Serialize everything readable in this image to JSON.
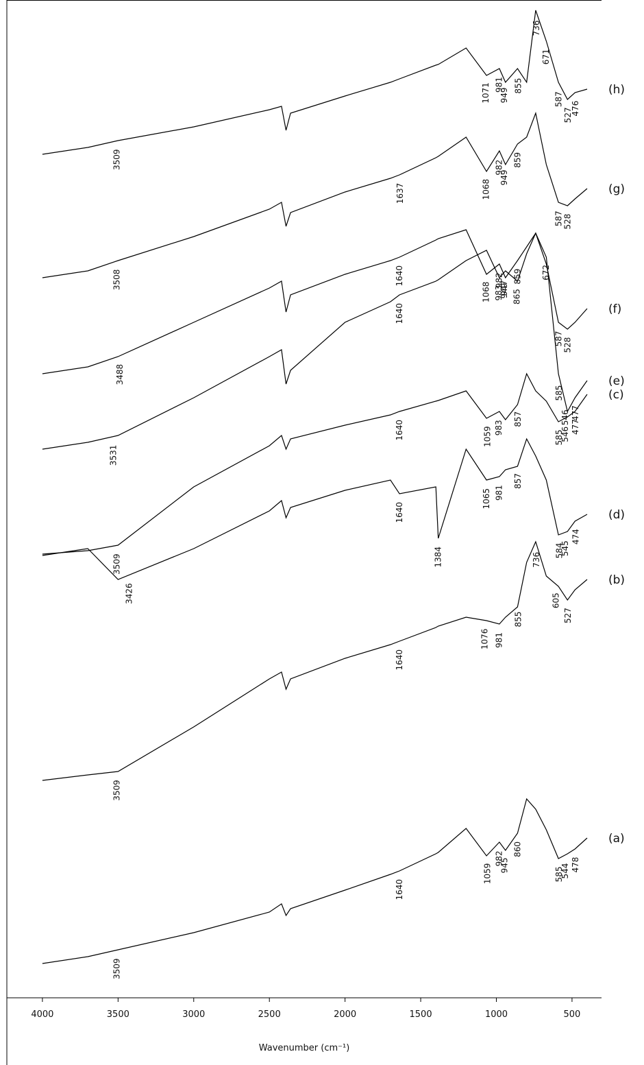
{
  "chart_data": {
    "type": "line",
    "x_label": "Wavenumber (cm⁻¹)",
    "xlim": [
      4235,
      305
    ],
    "ylim": [
      0,
      1455
    ],
    "xticks": [
      4000,
      3500,
      3000,
      2500,
      2000,
      1500,
      1000,
      500
    ],
    "grid": false,
    "x": [
      4000,
      3700,
      3500,
      3000,
      2500,
      2420,
      2390,
      2360,
      2000,
      1700,
      1640,
      1400,
      1384,
      1200,
      1065,
      980,
      940,
      860,
      800,
      740,
      670,
      590,
      530,
      480,
      400
    ],
    "series": [
      {
        "name": "(a)",
        "color": "#000000",
        "values": [
          50,
          60,
          70,
          95,
          125,
          137,
          120,
          130,
          157,
          180,
          185,
          210,
          212,
          247,
          207,
          227,
          215,
          240,
          290,
          275,
          245,
          203,
          210,
          217,
          233
        ],
        "peaks": [
          3509,
          1640,
          1059,
          982,
          945,
          860,
          585,
          544,
          478
        ]
      },
      {
        "name": "(b)",
        "color": "#000000",
        "values": [
          317,
          325,
          330,
          395,
          465,
          475,
          450,
          465,
          495,
          515,
          520,
          540,
          542,
          555,
          550,
          545,
          555,
          570,
          635,
          665,
          615,
          600,
          580,
          595,
          610
        ],
        "peaks": [
          3509,
          1640,
          1076,
          981,
          855,
          736,
          605,
          527
        ]
      },
      {
        "name": "(c)",
        "color": "#000000",
        "values": [
          647,
          652,
          660,
          745,
          805,
          820,
          800,
          815,
          835,
          850,
          855,
          870,
          871,
          885,
          845,
          855,
          843,
          865,
          910,
          885,
          870,
          840,
          847,
          855,
          880
        ],
        "peaks": [
          3509,
          1640,
          1059,
          983,
          857,
          585,
          546,
          477
        ]
      },
      {
        "name": "(d)",
        "color": "#000000",
        "values": [
          645,
          655,
          610,
          655,
          710,
          725,
          700,
          715,
          740,
          755,
          735,
          745,
          670,
          800,
          755,
          760,
          770,
          775,
          815,
          790,
          755,
          675,
          680,
          695,
          705
        ],
        "peaks": [
          3426,
          1640,
          1384,
          1065,
          981,
          857,
          584,
          545,
          474
        ]
      },
      {
        "name": "(e)",
        "color": "#000000",
        "values": [
          800,
          810,
          820,
          875,
          935,
          945,
          895,
          915,
          985,
          1015,
          1025,
          1045,
          1047,
          1075,
          1090,
          1050,
          1060,
          1045,
          1085,
          1115,
          1080,
          910,
          855,
          875,
          900
        ],
        "peaks": [
          3531,
          1640,
          983,
          947,
          865,
          672,
          585,
          546,
          477
        ]
      },
      {
        "name": "(f)",
        "color": "#000000",
        "values": [
          910,
          920,
          935,
          985,
          1035,
          1045,
          1000,
          1025,
          1055,
          1075,
          1080,
          1105,
          1107,
          1120,
          1055,
          1070,
          1050,
          1075,
          1095,
          1115,
          1070,
          985,
          975,
          985,
          1005
        ],
        "peaks": [
          3488,
          1640,
          1068,
          982,
          949,
          859,
          587,
          528
        ]
      },
      {
        "name": "(g)",
        "color": "#000000",
        "values": [
          1050,
          1060,
          1075,
          1110,
          1150,
          1160,
          1125,
          1145,
          1175,
          1195,
          1200,
          1225,
          1227,
          1255,
          1205,
          1235,
          1215,
          1245,
          1255,
          1290,
          1215,
          1160,
          1155,
          1165,
          1180
        ],
        "peaks": [
          3508,
          1637,
          1068,
          982,
          949,
          859,
          587,
          528
        ]
      },
      {
        "name": "(h)",
        "color": "#000000",
        "values": [
          1230,
          1240,
          1250,
          1270,
          1295,
          1300,
          1265,
          1290,
          1315,
          1335,
          1340,
          1360,
          1361,
          1385,
          1345,
          1355,
          1335,
          1355,
          1335,
          1440,
          1395,
          1335,
          1310,
          1320,
          1325
        ],
        "peaks": [
          3509,
          1071,
          981,
          949,
          855,
          736,
          671,
          587,
          527,
          476
        ]
      }
    ]
  }
}
